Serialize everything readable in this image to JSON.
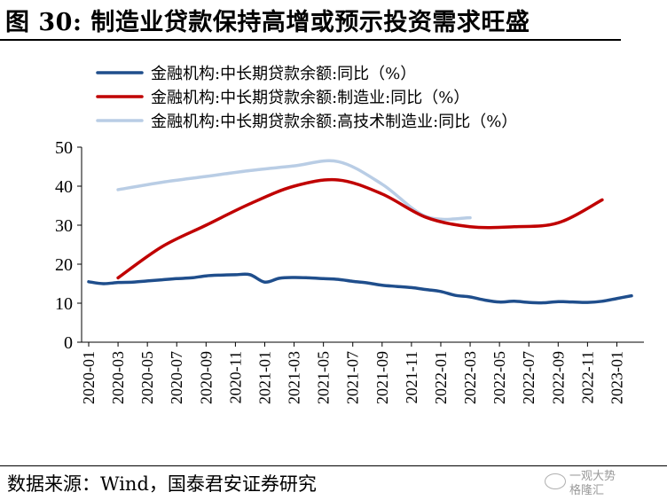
{
  "header": {
    "title": "图 30:  制造业贷款保持高增或预示投资需求旺盛"
  },
  "footer": {
    "source": "数据来源：Wind，国泰君安证券研究"
  },
  "watermark": {
    "line1": "一观大势",
    "line2": "格隆汇"
  },
  "colors": {
    "series_1": "#1f4e8c",
    "series_2": "#c00000",
    "series_3": "#b9cde5"
  },
  "chart_data": {
    "type": "line",
    "ylim": [
      0,
      50
    ],
    "yticks": [
      0,
      10,
      20,
      30,
      40,
      50
    ],
    "grid": false,
    "legend_position": "top-left",
    "x_range": [
      "2020-01",
      "2023-02"
    ],
    "x_ticks": [
      "2020-01",
      "2020-03",
      "2020-05",
      "2020-07",
      "2020-09",
      "2020-11",
      "2021-01",
      "2021-03",
      "2021-05",
      "2021-07",
      "2021-09",
      "2021-11",
      "2022-01",
      "2022-03",
      "2022-05",
      "2022-07",
      "2022-09",
      "2022-11",
      "2023-01"
    ],
    "series": [
      {
        "name": "金融机构:中长期贷款余额:同比（%）",
        "color": "#1f4e8c",
        "points": [
          [
            "2020-01",
            15.5
          ],
          [
            "2020-02",
            15.0
          ],
          [
            "2020-03",
            15.3
          ],
          [
            "2020-04",
            15.4
          ],
          [
            "2020-05",
            15.7
          ],
          [
            "2020-06",
            16.0
          ],
          [
            "2020-07",
            16.3
          ],
          [
            "2020-08",
            16.5
          ],
          [
            "2020-09",
            17.0
          ],
          [
            "2020-10",
            17.2
          ],
          [
            "2020-11",
            17.3
          ],
          [
            "2020-12",
            17.3
          ],
          [
            "2021-01",
            15.4
          ],
          [
            "2021-02",
            16.4
          ],
          [
            "2021-03",
            16.6
          ],
          [
            "2021-04",
            16.5
          ],
          [
            "2021-05",
            16.3
          ],
          [
            "2021-06",
            16.1
          ],
          [
            "2021-07",
            15.6
          ],
          [
            "2021-08",
            15.2
          ],
          [
            "2021-09",
            14.6
          ],
          [
            "2021-10",
            14.3
          ],
          [
            "2021-11",
            14.0
          ],
          [
            "2021-12",
            13.5
          ],
          [
            "2022-01",
            13.0
          ],
          [
            "2022-02",
            12.0
          ],
          [
            "2022-03",
            11.6
          ],
          [
            "2022-04",
            10.8
          ],
          [
            "2022-05",
            10.3
          ],
          [
            "2022-06",
            10.5
          ],
          [
            "2022-07",
            10.2
          ],
          [
            "2022-08",
            10.1
          ],
          [
            "2022-09",
            10.4
          ],
          [
            "2022-10",
            10.3
          ],
          [
            "2022-11",
            10.2
          ],
          [
            "2022-12",
            10.5
          ],
          [
            "2023-01",
            11.2
          ],
          [
            "2023-02",
            11.9
          ]
        ]
      },
      {
        "name": "金融机构:中长期贷款余额:制造业:同比（%）",
        "color": "#c00000",
        "points": [
          [
            "2020-03",
            16.5
          ],
          [
            "2020-06",
            24.5
          ],
          [
            "2020-09",
            30.0
          ],
          [
            "2020-12",
            35.5
          ],
          [
            "2021-03",
            40.0
          ],
          [
            "2021-06",
            41.6
          ],
          [
            "2021-09",
            38.0
          ],
          [
            "2021-12",
            32.0
          ],
          [
            "2022-03",
            29.6
          ],
          [
            "2022-06",
            29.6
          ],
          [
            "2022-09",
            30.6
          ],
          [
            "2022-12",
            36.5
          ]
        ]
      },
      {
        "name": "金融机构:中长期贷款余额:高技术制造业:同比（%）",
        "color": "#b9cde5",
        "points": [
          [
            "2020-03",
            39.1
          ],
          [
            "2020-06",
            41.0
          ],
          [
            "2020-09",
            42.5
          ],
          [
            "2020-12",
            44.0
          ],
          [
            "2021-03",
            45.2
          ],
          [
            "2021-06",
            46.3
          ],
          [
            "2021-09",
            40.5
          ],
          [
            "2021-12",
            32.2
          ],
          [
            "2022-03",
            31.9
          ]
        ]
      }
    ]
  }
}
